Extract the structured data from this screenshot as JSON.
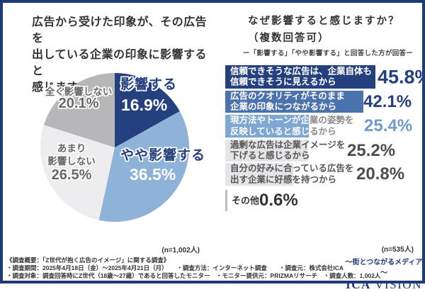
{
  "left_panel": {
    "title_lines": [
      "広告から受けた印象が、その広告を",
      "出している企業の印象に影響すると",
      "感じますか？"
    ],
    "n_label": "(n=1,002人)"
  },
  "pie": {
    "slice1_name": "影響する",
    "slice1_pct": "16.9%",
    "slice2_name": "やや影響する",
    "slice2_pct": "36.5%",
    "slice3_line1": "あまり",
    "slice3_line2": "影響しない",
    "slice3_pct": "26.5%",
    "slice4_name": "全く影響しない",
    "slice4_pct": "20.1%"
  },
  "right_panel": {
    "title": "なぜ影響すると感じますか？",
    "title2": "（複数回答可）",
    "subtitle": "ー「影響する」「やや影響する」と回答した方が回答ー",
    "n_label": "(n=535人)",
    "bars": [
      {
        "line1": "信頼できそうな広告は、企業自体も",
        "line2": "信頼できそうに見えるから",
        "pct": "45.8%"
      },
      {
        "line1": "広告のクオリティがそのまま",
        "line2": "企業の印象につながるから",
        "pct": "42.1%"
      },
      {
        "line1": "現方法やトーンが企業の姿勢を",
        "line2": "反映していると感じるから",
        "pct": "25.4%"
      },
      {
        "line1": "過剰な広告は企業イメージを",
        "line2": "下げると感じるから",
        "pct": "25.2%"
      },
      {
        "line1": "自分の好みに合っている広告を",
        "line2": "出す企業に好感を持つから",
        "pct": "20.8%"
      },
      {
        "line1": "その他",
        "line2": "",
        "pct": "0.6%"
      }
    ]
  },
  "footer": {
    "line1": "《調査概要：「Z世代が抱く広告のイメージ」に関する調査》",
    "line2": "・調査期間：2025年4月18日（金）～2025年4月21日（月）　　・調査方法：インターネット調査　　・調査元：株式会社ICA",
    "line3": "・調査対象：調査回答時にZ世代（18歳～27歳）であると回答したモニター　・モニター提供元：PRIZMAリサーチ　・調査人数：1,002人"
  },
  "logo": {
    "tagline": "～街とつながるメディア～",
    "name_bold": "ICA",
    "name_rest": "VISION"
  },
  "chart_data": [
    {
      "type": "pie",
      "title": "広告から受けた印象が、その広告を出している企業の印象に影響すると感じますか？",
      "labels": [
        "影響する",
        "やや影響する",
        "あまり影響しない",
        "全く影響しない"
      ],
      "values": [
        16.9,
        36.5,
        26.5,
        20.1
      ],
      "colors": [
        "#24407e",
        "#8fb2d9",
        "#ededef",
        "#b7b7b9"
      ],
      "start_angle": "12時方向から時計回り",
      "n": "n=1,002人"
    },
    {
      "type": "bar",
      "orientation": "horizontal",
      "title": "なぜ影響すると感じますか？（複数回答可）",
      "subtitle": "ー「影響する」「やや影響する」と回答した方が回答ー",
      "categories": [
        "信頼できそうな広告は、企業自体も信頼できそうに見えるから",
        "広告のクオリティがそのまま企業の印象につながるから",
        "現方法やトーンが企業の姿勢を反映していると感じるから",
        "過剰な広告は企業イメージを下げると感じるから",
        "自分の好みに合っている広告を出す企業に好感を持つから",
        "その他"
      ],
      "values": [
        45.8,
        42.1,
        25.4,
        25.2,
        20.8,
        0.6
      ],
      "colors": [
        "#24407e",
        "#4a72ad",
        "#7ea8d4",
        "#e5e5e7",
        "#e5e5e7",
        "#bfbfc1"
      ],
      "xlim": [
        0,
        50
      ],
      "grid": false,
      "legend": "none",
      "n": "n=535人"
    }
  ]
}
